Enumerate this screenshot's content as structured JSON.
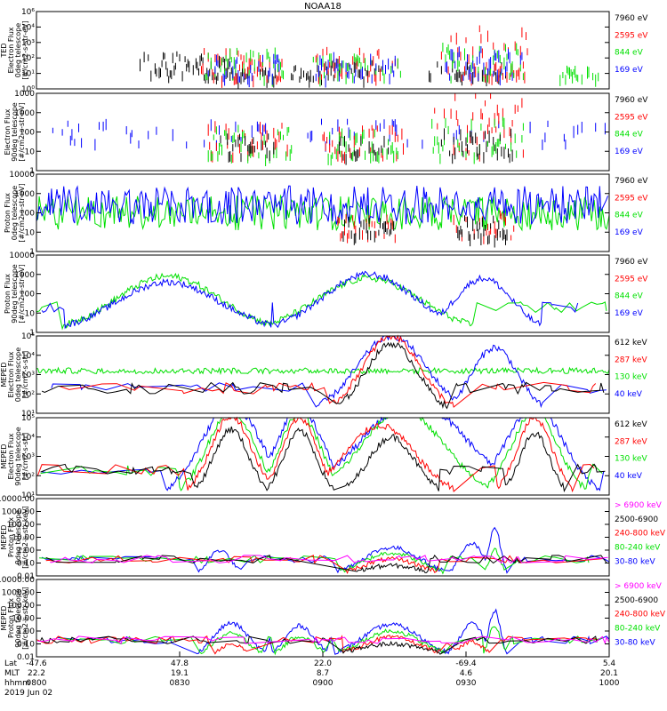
{
  "title": "NOAA18",
  "colors": {
    "black": "#000000",
    "red": "#ff0000",
    "green": "#00e000",
    "blue": "#0000ff",
    "magenta": "#ff00ff"
  },
  "footer": {
    "row_labels": [
      "Lat",
      "MLT",
      "hhmm",
      "2019 Jun 02"
    ],
    "ticks": [
      {
        "lat": "-47.6",
        "mlt": "22.2",
        "hhmm": "0800"
      },
      {
        "lat": "47.8",
        "mlt": "19.1",
        "hhmm": "0830"
      },
      {
        "lat": "22.0",
        "mlt": "8.7",
        "hhmm": "0900"
      },
      {
        "lat": "-69.4",
        "mlt": "4.6",
        "hhmm": "0930"
      },
      {
        "lat": "5.4",
        "mlt": "20.1",
        "hhmm": "1000"
      }
    ]
  },
  "chart_data": [
    {
      "type": "line",
      "scale": "log",
      "ylabel": [
        "TED",
        "Electron Flux",
        "0deg telescope",
        "[#/cm2-s-str-eV]"
      ],
      "yticks": [
        "10⁶",
        "10⁴",
        "10³",
        "10²",
        "10¹",
        "10⁰"
      ],
      "legend": [
        {
          "label": "7960 eV",
          "color": "black"
        },
        {
          "label": "2595 eV",
          "color": "red"
        },
        {
          "label": "844 eV",
          "color": "green"
        },
        {
          "label": "169 eV",
          "color": "blue"
        }
      ],
      "series": [
        {
          "color": "black",
          "style": "burst",
          "bursts": [
            [
              0.26,
              0.46,
              1.8
            ],
            [
              0.29,
              0.43,
              1.4
            ],
            [
              0.36,
              0.35,
              0.6
            ],
            [
              0.48,
              0.22,
              0.8
            ],
            [
              0.55,
              0.3,
              1.2
            ],
            [
              0.72,
              0.2,
              1.2
            ],
            [
              0.78,
              0.25,
              1.0
            ]
          ]
        },
        {
          "color": "red",
          "style": "burst",
          "bursts": [
            [
              0.36,
              0.4,
              2.0
            ],
            [
              0.56,
              0.42,
              2.0
            ],
            [
              0.78,
              0.44,
              3.5
            ],
            [
              0.8,
              0.3,
              1.0
            ]
          ]
        },
        {
          "color": "green",
          "style": "burst",
          "bursts": [
            [
              0.36,
              0.4,
              2.0
            ],
            [
              0.56,
              0.44,
              1.5
            ],
            [
              0.78,
              0.4,
              2.2
            ],
            [
              0.95,
              0.2,
              0.8
            ]
          ]
        },
        {
          "color": "blue",
          "style": "burst",
          "bursts": [
            [
              0.36,
              0.38,
              1.5
            ],
            [
              0.56,
              0.4,
              1.6
            ],
            [
              0.78,
              0.38,
              2.0
            ]
          ]
        }
      ]
    },
    {
      "type": "line",
      "scale": "log",
      "ylabel": [
        "Electron Flux",
        "90deg telescope",
        "[#/cm2-s-str-eV]"
      ],
      "yticks": [
        "1000",
        "1000",
        "100",
        "10",
        "1"
      ],
      "legend": [
        {
          "label": "7960 eV",
          "color": "black"
        },
        {
          "label": "2595 eV",
          "color": "red"
        },
        {
          "label": "844 eV",
          "color": "green"
        },
        {
          "label": "169 eV",
          "color": "blue"
        }
      ],
      "series": [
        {
          "color": "blue",
          "style": "sticks",
          "density": 0.55
        },
        {
          "color": "red",
          "style": "burst",
          "bursts": [
            [
              0.37,
              0.4,
              1.8
            ],
            [
              0.57,
              0.4,
              1.6
            ],
            [
              0.77,
              0.45,
              3.8
            ]
          ]
        },
        {
          "color": "green",
          "style": "burst",
          "bursts": [
            [
              0.37,
              0.42,
              1.6
            ],
            [
              0.57,
              0.35,
              1.4
            ],
            [
              0.77,
              0.45,
              2.0
            ]
          ]
        },
        {
          "color": "black",
          "style": "burst",
          "bursts": [
            [
              0.37,
              0.28,
              1.2
            ],
            [
              0.57,
              0.25,
              1.0
            ],
            [
              0.77,
              0.35,
              1.4
            ]
          ]
        }
      ]
    },
    {
      "type": "line",
      "scale": "log",
      "ylabel": [
        "Proton Flux",
        "0deg telescope",
        "[#/cm2-s-str-eV]"
      ],
      "yticks": [
        "10000",
        "1000",
        "100",
        "10",
        "1"
      ],
      "legend": [
        {
          "label": "7960 eV",
          "color": "black"
        },
        {
          "label": "2595 eV",
          "color": "red"
        },
        {
          "label": "844 eV",
          "color": "green"
        },
        {
          "label": "169 eV",
          "color": "blue"
        }
      ],
      "series": [
        {
          "color": "green",
          "style": "noisy",
          "base": 2.0,
          "amp": 0.9
        },
        {
          "color": "blue",
          "style": "noisy",
          "base": 2.4,
          "amp": 1.0
        },
        {
          "color": "red",
          "style": "burst",
          "bursts": [
            [
              0.58,
              0.3,
              1.2
            ],
            [
              0.78,
              0.3,
              1.4
            ]
          ]
        },
        {
          "color": "black",
          "style": "burst",
          "bursts": [
            [
              0.58,
              0.25,
              1.0
            ],
            [
              0.78,
              0.25,
              1.1
            ]
          ]
        }
      ]
    },
    {
      "type": "line",
      "scale": "log",
      "ylabel": [
        "Proton Flux",
        "90deg telescope",
        "[#/cm2-s-str-eV]"
      ],
      "yticks": [
        "10000",
        "1000",
        "100",
        "10",
        "1"
      ],
      "legend": [
        {
          "label": "7960 eV",
          "color": "black"
        },
        {
          "label": "2595 eV",
          "color": "red"
        },
        {
          "label": "844 eV",
          "color": "green"
        },
        {
          "label": "169 eV",
          "color": "blue"
        }
      ],
      "series": [
        {
          "color": "green",
          "style": "hump",
          "humps": [
            [
              0.23,
              0.09,
              2.9
            ],
            [
              0.58,
              0.09,
              2.8
            ]
          ]
        },
        {
          "color": "blue",
          "style": "hump",
          "humps": [
            [
              0.23,
              0.09,
              2.6
            ],
            [
              0.58,
              0.08,
              3.0
            ],
            [
              0.78,
              0.05,
              2.8
            ]
          ]
        }
      ]
    },
    {
      "type": "line",
      "scale": "log",
      "ylabel": [
        "MEPED",
        "Electron Flux",
        "0deg telescope",
        "[#/cm2-s-str]"
      ],
      "yticks": [
        "10⁵",
        "10⁴",
        "10³",
        "10²",
        "10¹"
      ],
      "legend": [
        {
          "label": "612 keV",
          "color": "black"
        },
        {
          "label": "287 keV",
          "color": "red"
        },
        {
          "label": "130 keV",
          "color": "green"
        },
        {
          "label": "40 keV",
          "color": "blue"
        }
      ],
      "series": [
        {
          "color": "green",
          "style": "floor",
          "base": 2.05
        },
        {
          "color": "blue",
          "style": "hump",
          "humps": [
            [
              0.62,
              0.06,
              4.0
            ],
            [
              0.8,
              0.04,
              3.4
            ]
          ]
        },
        {
          "color": "red",
          "style": "hump",
          "humps": [
            [
              0.62,
              0.05,
              4.0
            ]
          ]
        },
        {
          "color": "black",
          "style": "hump",
          "humps": [
            [
              0.62,
              0.045,
              3.6
            ]
          ]
        }
      ]
    },
    {
      "type": "line",
      "scale": "log",
      "ylabel": [
        "MEPED",
        "Electron Flux",
        "90deg telescope",
        "[#/cm2-s-str]"
      ],
      "yticks": [
        "10⁵",
        "10⁴",
        "10³",
        "10²",
        "10¹"
      ],
      "legend": [
        {
          "label": "612 keV",
          "color": "black"
        },
        {
          "label": "287 keV",
          "color": "red"
        },
        {
          "label": "130 keV",
          "color": "green"
        },
        {
          "label": "40 keV",
          "color": "blue"
        }
      ],
      "series": [
        {
          "color": "blue",
          "style": "hump",
          "humps": [
            [
              0.34,
              0.05,
              4.7
            ],
            [
              0.46,
              0.04,
              4.5
            ],
            [
              0.66,
              0.09,
              4.8
            ],
            [
              0.87,
              0.05,
              4.6
            ]
          ]
        },
        {
          "color": "green",
          "style": "hump",
          "humps": [
            [
              0.34,
              0.04,
              4.4
            ],
            [
              0.46,
              0.035,
              4.2
            ],
            [
              0.64,
              0.07,
              4.4
            ],
            [
              0.87,
              0.04,
              4.3
            ]
          ]
        },
        {
          "color": "red",
          "style": "hump",
          "humps": [
            [
              0.34,
              0.035,
              4.1
            ],
            [
              0.46,
              0.03,
              4.0
            ],
            [
              0.6,
              0.06,
              3.6
            ],
            [
              0.87,
              0.03,
              4.0
            ]
          ]
        },
        {
          "color": "black",
          "style": "hump",
          "humps": [
            [
              0.34,
              0.03,
              3.4
            ],
            [
              0.46,
              0.028,
              3.3
            ],
            [
              0.62,
              0.04,
              3.0
            ],
            [
              0.87,
              0.025,
              3.2
            ]
          ]
        }
      ]
    },
    {
      "type": "line",
      "scale": "log",
      "ylabel": [
        "MEPED",
        "Proton Flux",
        "0deg telescope",
        "[#/cm2-s-str-keV]"
      ],
      "yticks": [
        "10000.00",
        "1000.00",
        "100.00",
        "10.00",
        "1.00",
        "0.10",
        "0.01"
      ],
      "legend": [
        {
          "label": "> 6900 keV",
          "color": "magenta"
        },
        {
          "label": "2500-6900",
          "color": "black"
        },
        {
          "label": "240-800 keV",
          "color": "red"
        },
        {
          "label": "80-240 keV",
          "color": "green"
        },
        {
          "label": "30-80 keV",
          "color": "blue"
        }
      ],
      "series": [
        {
          "color": "blue",
          "style": "hump",
          "humps": [
            [
              0.62,
              0.05,
              2.2
            ],
            [
              0.76,
              0.02,
              2.5
            ],
            [
              0.8,
              0.01,
              3.8
            ],
            [
              0.32,
              0.02,
              2.0
            ]
          ]
        },
        {
          "color": "green",
          "style": "hump",
          "humps": [
            [
              0.62,
              0.05,
              1.8
            ],
            [
              0.8,
              0.01,
              2.0
            ]
          ]
        },
        {
          "color": "red",
          "style": "hump",
          "humps": [
            [
              0.62,
              0.05,
              1.3
            ]
          ]
        },
        {
          "color": "black",
          "style": "hump",
          "humps": [
            [
              0.62,
              0.05,
              0.8
            ]
          ]
        },
        {
          "color": "magenta",
          "style": "hump",
          "humps": [
            [
              0.62,
              0.04,
              0.2
            ]
          ]
        }
      ]
    },
    {
      "type": "line",
      "scale": "log",
      "ylabel": [
        "MEPED",
        "Proton Flux",
        "90deg telescope",
        "[#/cm2-s-str-keV]"
      ],
      "yticks": [
        "10000.00",
        "1000.00",
        "100.00",
        "10.00",
        "1.00",
        "0.10",
        "0.01"
      ],
      "legend": [
        {
          "label": "> 6900 keV",
          "color": "magenta"
        },
        {
          "label": "2500-6900",
          "color": "black"
        },
        {
          "label": "240-800 keV",
          "color": "red"
        },
        {
          "label": "80-240 keV",
          "color": "green"
        },
        {
          "label": "30-80 keV",
          "color": "blue"
        }
      ],
      "series": [
        {
          "color": "blue",
          "style": "hump",
          "humps": [
            [
              0.34,
              0.03,
              2.6
            ],
            [
              0.46,
              0.025,
              2.4
            ],
            [
              0.62,
              0.05,
              2.5
            ],
            [
              0.76,
              0.02,
              2.6
            ],
            [
              0.8,
              0.01,
              3.6
            ]
          ]
        },
        {
          "color": "green",
          "style": "hump",
          "humps": [
            [
              0.34,
              0.03,
              1.8
            ],
            [
              0.46,
              0.025,
              1.6
            ],
            [
              0.62,
              0.05,
              2.0
            ],
            [
              0.8,
              0.01,
              2.4
            ]
          ]
        },
        {
          "color": "red",
          "style": "hump",
          "humps": [
            [
              0.34,
              0.02,
              1.0
            ],
            [
              0.62,
              0.05,
              1.5
            ],
            [
              0.76,
              0.02,
              1.2
            ]
          ]
        },
        {
          "color": "black",
          "style": "hump",
          "humps": [
            [
              0.62,
              0.06,
              1.0
            ]
          ]
        },
        {
          "color": "magenta",
          "style": "hump",
          "humps": [
            [
              0.62,
              0.04,
              0.3
            ]
          ]
        }
      ]
    }
  ]
}
